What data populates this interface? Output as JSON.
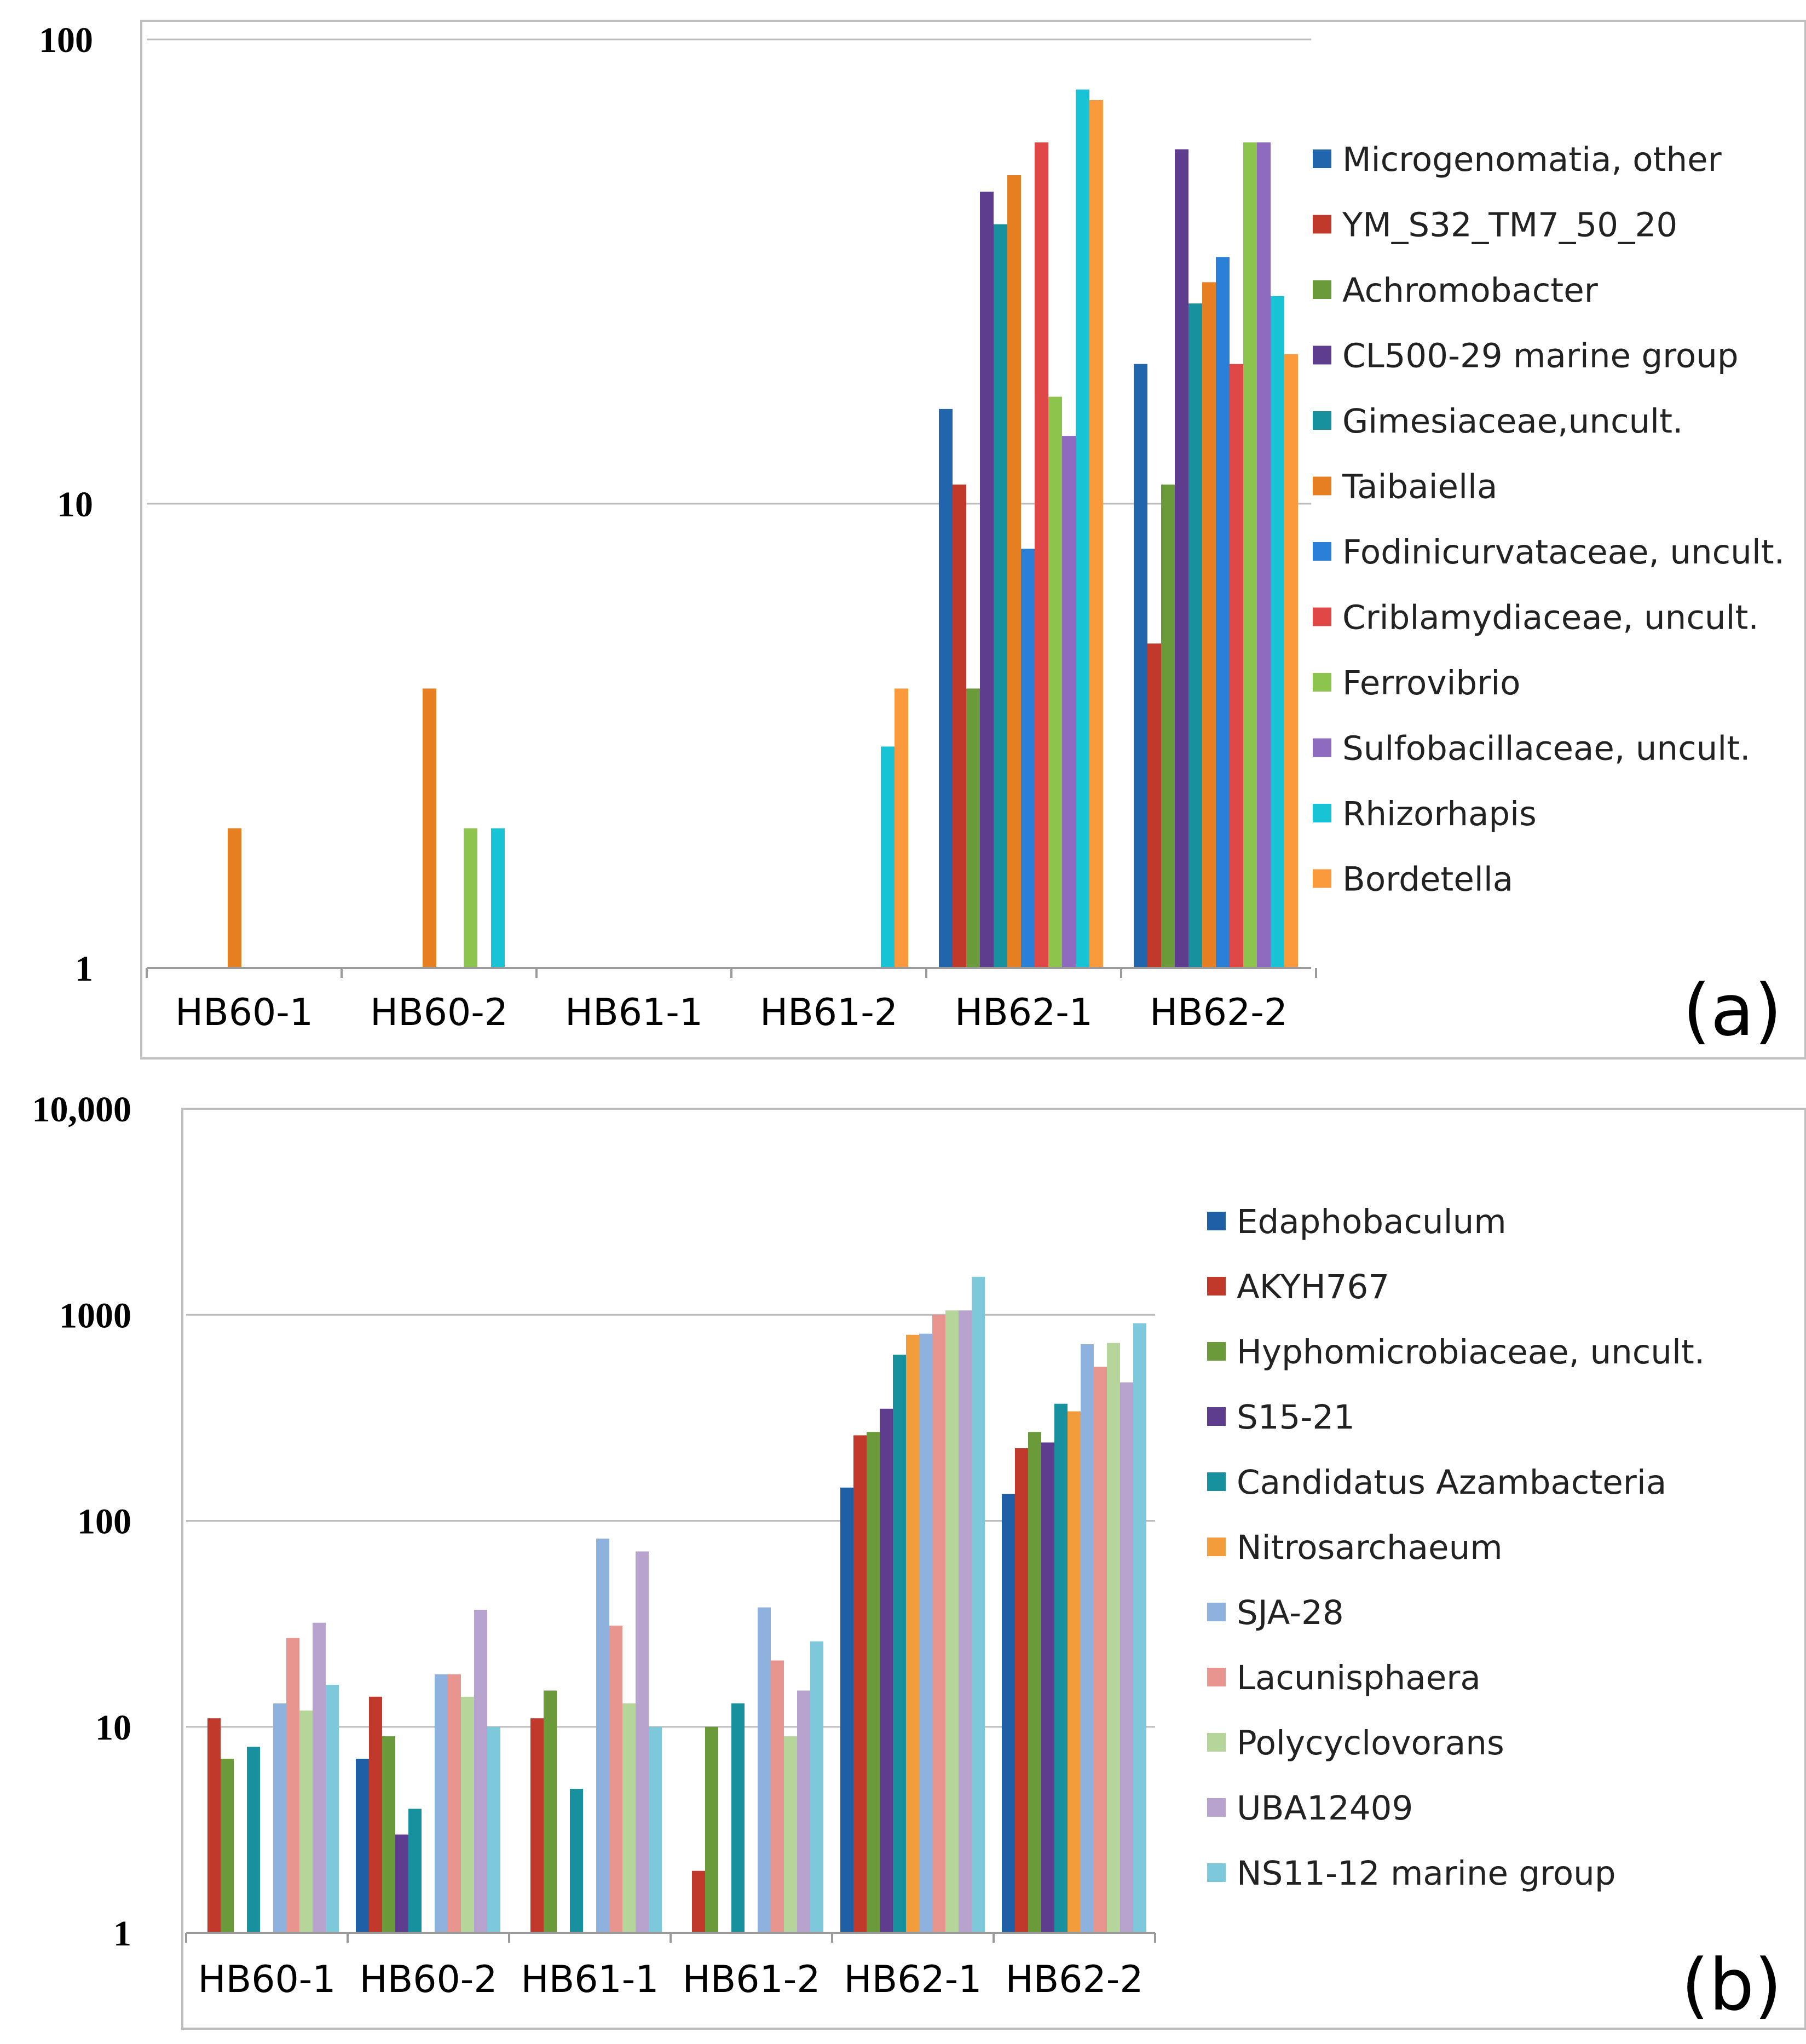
{
  "chart_data": [
    {
      "type": "bar",
      "panel_label": "(a)",
      "y_scale": "log",
      "ylim": [
        1,
        100
      ],
      "y_ticks": [
        1,
        10,
        100
      ],
      "y_tick_labels": [
        "1",
        "10",
        "100"
      ],
      "grid": true,
      "legend_position": "right",
      "categories": [
        "HB60-1",
        "HB60-2",
        "HB61-1",
        "HB61-2",
        "HB62-1",
        "HB62-2"
      ],
      "series": [
        {
          "name": "Microgenomatia, other",
          "color": "#2166ac",
          "values": [
            0,
            0,
            0,
            0,
            16,
            20
          ]
        },
        {
          "name": "YM_S32_TM7_50_20",
          "color": "#c0392b",
          "values": [
            0,
            0,
            0,
            0,
            11,
            5
          ]
        },
        {
          "name": "Achromobacter",
          "color": "#6a9a3a",
          "values": [
            0,
            0,
            0,
            0,
            4,
            11
          ]
        },
        {
          "name": "CL500-29 marine group",
          "color": "#5e3c8e",
          "values": [
            0,
            0,
            0,
            0,
            47,
            58
          ]
        },
        {
          "name": "Gimesiaceae,uncult.",
          "color": "#17919e",
          "values": [
            0,
            0,
            0,
            0,
            40,
            27
          ]
        },
        {
          "name": "Taibaiella",
          "color": "#e67e22",
          "values": [
            2,
            4,
            0,
            0,
            51,
            30
          ]
        },
        {
          "name": "Fodinicurvataceae, uncult.",
          "color": "#2980d6",
          "values": [
            0,
            0,
            0,
            0,
            8,
            34
          ]
        },
        {
          "name": "Criblamydiaceae, uncult.",
          "color": "#e04848",
          "values": [
            0,
            0,
            0,
            0,
            60,
            20
          ]
        },
        {
          "name": "Ferrovibrio",
          "color": "#8dc44e",
          "values": [
            0,
            2,
            0,
            0,
            17,
            60
          ]
        },
        {
          "name": "Sulfobacillaceae, uncult.",
          "color": "#8e6bbf",
          "values": [
            0,
            0,
            0,
            0,
            14,
            60
          ]
        },
        {
          "name": "Rhizorhapis",
          "color": "#19c3d6",
          "values": [
            0,
            2,
            0,
            3,
            78,
            28
          ]
        },
        {
          "name": "Bordetella",
          "color": "#fb9a3c",
          "values": [
            0,
            0,
            0,
            4,
            74,
            21
          ]
        }
      ]
    },
    {
      "type": "bar",
      "panel_label": "(b)",
      "y_scale": "log",
      "ylim": [
        1,
        10000
      ],
      "y_ticks": [
        1,
        10,
        100,
        1000,
        10000
      ],
      "y_tick_labels": [
        "1",
        "10",
        "100",
        "1000",
        "10,000"
      ],
      "grid": true,
      "legend_position": "right",
      "categories": [
        "HB60-1",
        "HB60-2",
        "HB61-1",
        "HB61-2",
        "HB62-1",
        "HB62-2"
      ],
      "series": [
        {
          "name": "Edaphobaculum",
          "color": "#1f5fa6",
          "values": [
            0,
            7,
            0,
            0,
            145,
            135
          ]
        },
        {
          "name": "AKYH767",
          "color": "#c0392b",
          "values": [
            11,
            14,
            11,
            2,
            260,
            225
          ]
        },
        {
          "name": "Hyphomicrobiaceae, uncult.",
          "color": "#6a9a3a",
          "values": [
            7,
            9,
            15,
            10,
            270,
            270
          ]
        },
        {
          "name": "S15-21",
          "color": "#5e3c8e",
          "values": [
            0,
            3,
            0,
            0,
            350,
            240
          ]
        },
        {
          "name": "Candidatus Azambacteria",
          "color": "#17919e",
          "values": [
            8,
            4,
            5,
            13,
            640,
            370
          ]
        },
        {
          "name": "Nitrosarchaeum",
          "color": "#f39c3c",
          "values": [
            0,
            0,
            0,
            0,
            800,
            340
          ]
        },
        {
          "name": "SJA-28",
          "color": "#8fb1dd",
          "values": [
            13,
            18,
            82,
            38,
            810,
            720
          ]
        },
        {
          "name": "Lacunisphaera",
          "color": "#e89590",
          "values": [
            27,
            18,
            31,
            21,
            1000,
            560
          ]
        },
        {
          "name": "Polycyclovorans",
          "color": "#b5d59a",
          "values": [
            12,
            14,
            13,
            9,
            1050,
            730
          ]
        },
        {
          "name": "UBA12409",
          "color": "#b8a3cf",
          "values": [
            32,
            37,
            71,
            15,
            1050,
            470
          ]
        },
        {
          "name": "NS11-12 marine group",
          "color": "#7ec8dc",
          "values": [
            16,
            10,
            10,
            26,
            1530,
            910
          ]
        }
      ]
    }
  ]
}
